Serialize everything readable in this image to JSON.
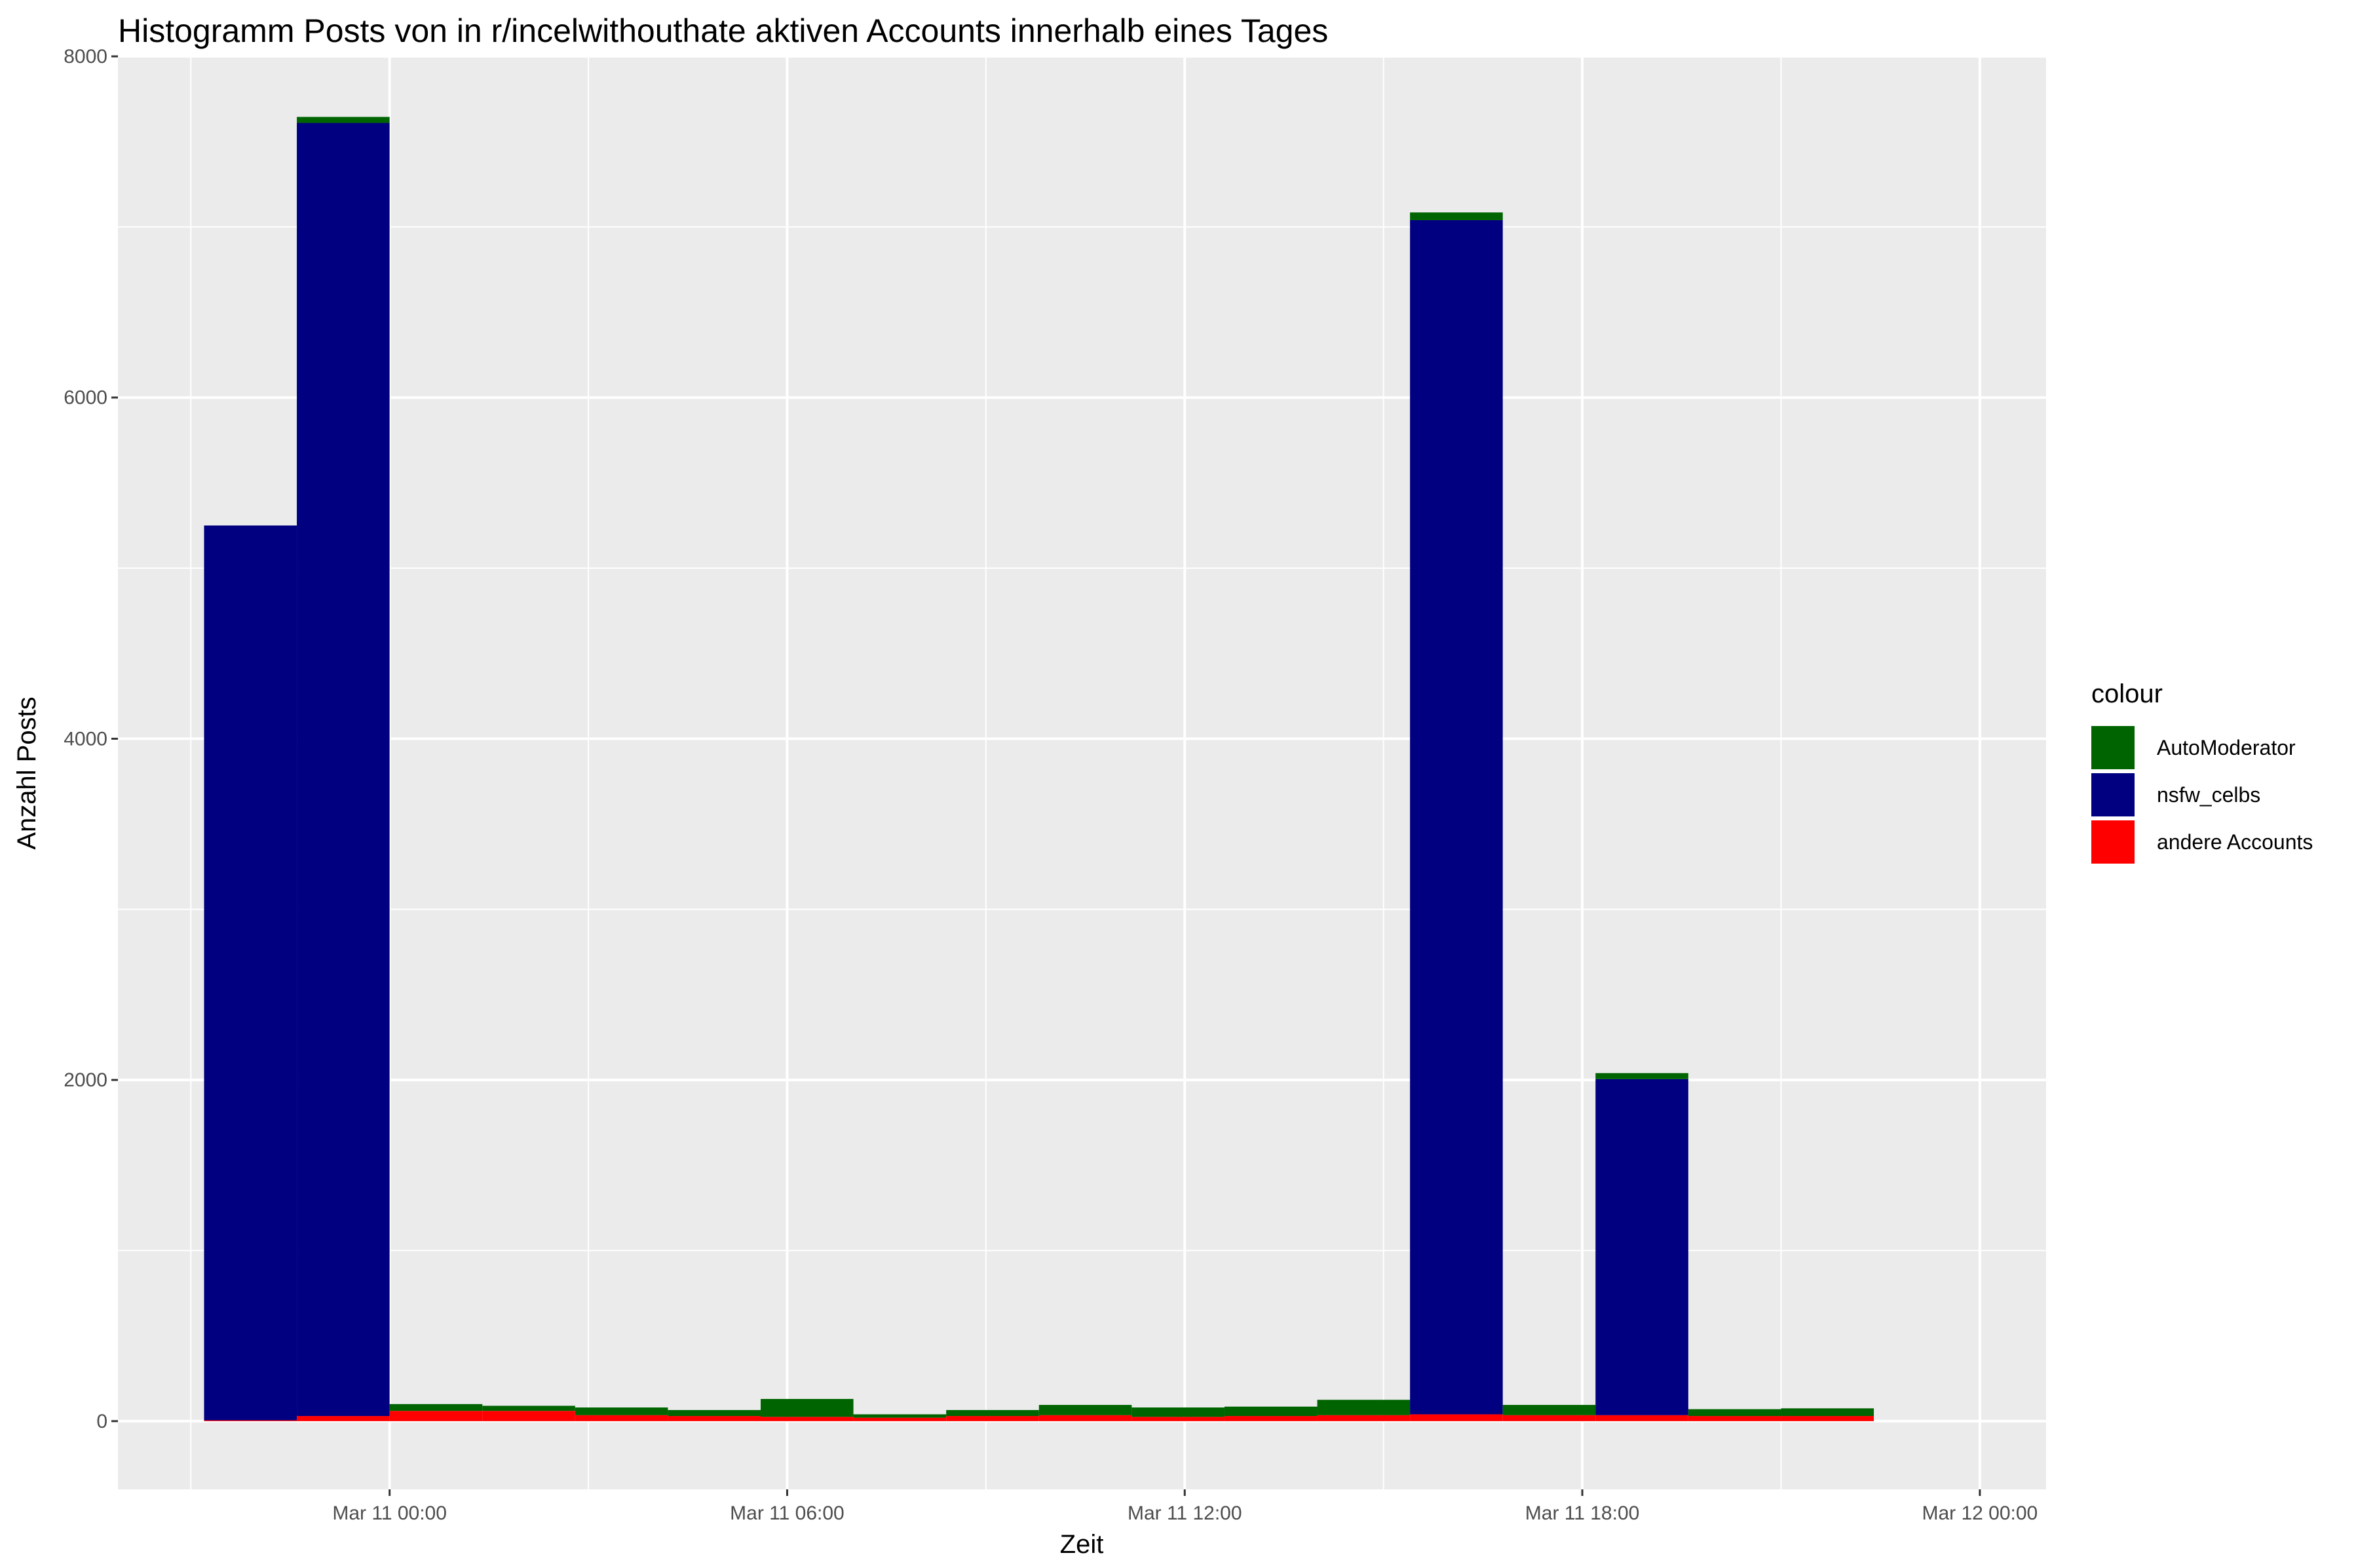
{
  "chart_data": {
    "type": "bar",
    "stacked": true,
    "title": "Histogramm Posts von in r/incelwithouthate aktiven Accounts innerhalb eines Tages",
    "xlabel": "Zeit",
    "ylabel": "Anzahl Posts",
    "x_tick_labels": [
      "Mar 11 00:00",
      "Mar 11 06:00",
      "Mar 11 12:00",
      "Mar 11 18:00",
      "Mar 12 00:00"
    ],
    "x_tick_hours": [
      0,
      6,
      12,
      18,
      24
    ],
    "xlim_hours": [
      -4.1,
      25
    ],
    "y_ticks": [
      0,
      2000,
      4000,
      6000,
      8000
    ],
    "y_tick_labels": [
      "0",
      "2000",
      "4000",
      "6000",
      "8000"
    ],
    "ylim": [
      -400,
      8000
    ],
    "grid": true,
    "legend_position": "right",
    "legend_title": "colour",
    "bin_width_hours": 1.4,
    "bin_start_hours": [
      -2.8,
      -1.4,
      0.0,
      1.4,
      2.8,
      4.2,
      5.6,
      7.0,
      8.4,
      9.8,
      11.2,
      12.6,
      14.0,
      15.4,
      16.8,
      18.2,
      19.6,
      21.0
    ],
    "series": [
      {
        "name": "andere Accounts",
        "color": "#FF0000",
        "values": [
          5,
          30,
          60,
          60,
          35,
          30,
          25,
          20,
          30,
          35,
          25,
          30,
          35,
          40,
          35,
          35,
          30,
          30
        ]
      },
      {
        "name": "nsfw_celbs",
        "color": "#000080",
        "values": [
          5245,
          7580,
          0,
          0,
          0,
          0,
          0,
          0,
          0,
          0,
          0,
          0,
          0,
          7000,
          0,
          1970,
          0,
          0
        ]
      },
      {
        "name": "AutoModerator",
        "color": "#006400",
        "values": [
          0,
          35,
          40,
          30,
          45,
          35,
          105,
          20,
          35,
          60,
          55,
          55,
          90,
          45,
          60,
          35,
          40,
          45
        ]
      }
    ],
    "legend_order": [
      "AutoModerator",
      "nsfw_celbs",
      "andere Accounts"
    ]
  }
}
